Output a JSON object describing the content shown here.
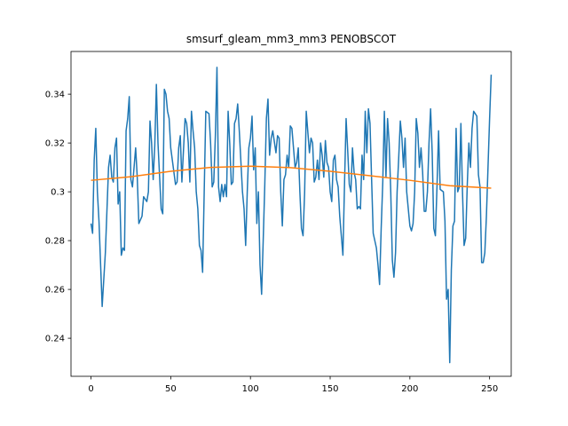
{
  "chart_data": {
    "type": "line",
    "title": "smsurf_gleam_mm3_mm3 PENOBSCOT",
    "xlim": [
      -12.55,
      263.55
    ],
    "ylim": [
      0.2244,
      0.3575
    ],
    "xticks": [
      0,
      50,
      100,
      150,
      200,
      250
    ],
    "yticks": [
      0.24,
      0.26,
      0.28,
      0.3,
      0.32,
      0.34
    ],
    "series": [
      {
        "color": "#1f77b4",
        "x": [
          0,
          1,
          2,
          3,
          4,
          5,
          7,
          9,
          11,
          12,
          13,
          14,
          15,
          16,
          17,
          18,
          19,
          20,
          21,
          22,
          23,
          24,
          25,
          26,
          28,
          29,
          30,
          32,
          33,
          35,
          36,
          37,
          38,
          39,
          40,
          41,
          42,
          44,
          45,
          46,
          47,
          48,
          49,
          50,
          53,
          54,
          55,
          56,
          57,
          59,
          60,
          61,
          62,
          63,
          64,
          65,
          66,
          67,
          68,
          69,
          70,
          71,
          72,
          74,
          75,
          76,
          77,
          78,
          79,
          80,
          81,
          82,
          83,
          84,
          85,
          86,
          87,
          88,
          89,
          90,
          91,
          92,
          93,
          95,
          96,
          97,
          98,
          99,
          100,
          101,
          102,
          103,
          104,
          105,
          106,
          107,
          108,
          109,
          110,
          111,
          112,
          113,
          114,
          116,
          117,
          118,
          119,
          120,
          121,
          122,
          123,
          124,
          125,
          126,
          127,
          128,
          129,
          130,
          131,
          132,
          133,
          134,
          135,
          137,
          138,
          139,
          140,
          141,
          142,
          143,
          144,
          145,
          146,
          147,
          148,
          149,
          150,
          151,
          152,
          153,
          154,
          155,
          156,
          158,
          159,
          160,
          161,
          162,
          163,
          164,
          165,
          166,
          167,
          168,
          169,
          170,
          171,
          172,
          173,
          174,
          175,
          176,
          177,
          179,
          180,
          181,
          182,
          183,
          184,
          185,
          186,
          187,
          188,
          189,
          190,
          191,
          192,
          193,
          194,
          195,
          196,
          197,
          198,
          200,
          201,
          202,
          203,
          204,
          205,
          206,
          207,
          208,
          209,
          210,
          211,
          212,
          213,
          214,
          215,
          216,
          217,
          218,
          219,
          221,
          222,
          223,
          224,
          225,
          226,
          227,
          228,
          229,
          230,
          231,
          232,
          233,
          234,
          235,
          236,
          237,
          238,
          239,
          240,
          242,
          243,
          244,
          245,
          246,
          247,
          248,
          249,
          250,
          251
        ],
        "values": [
          0.287,
          0.283,
          0.313,
          0.326,
          0.3,
          0.288,
          0.253,
          0.275,
          0.31,
          0.315,
          0.306,
          0.304,
          0.318,
          0.322,
          0.295,
          0.3,
          0.274,
          0.277,
          0.276,
          0.325,
          0.33,
          0.339,
          0.305,
          0.302,
          0.318,
          0.306,
          0.287,
          0.29,
          0.298,
          0.296,
          0.3,
          0.329,
          0.32,
          0.305,
          0.319,
          0.344,
          0.32,
          0.293,
          0.291,
          0.342,
          0.34,
          0.333,
          0.33,
          0.318,
          0.303,
          0.304,
          0.318,
          0.323,
          0.304,
          0.33,
          0.328,
          0.32,
          0.304,
          0.333,
          0.325,
          0.318,
          0.3,
          0.293,
          0.278,
          0.276,
          0.267,
          0.3,
          0.333,
          0.332,
          0.32,
          0.302,
          0.304,
          0.323,
          0.351,
          0.302,
          0.296,
          0.303,
          0.298,
          0.303,
          0.298,
          0.333,
          0.32,
          0.303,
          0.304,
          0.328,
          0.33,
          0.336,
          0.325,
          0.3,
          0.293,
          0.278,
          0.3,
          0.318,
          0.322,
          0.331,
          0.309,
          0.318,
          0.287,
          0.3,
          0.27,
          0.258,
          0.28,
          0.303,
          0.33,
          0.338,
          0.315,
          0.322,
          0.325,
          0.316,
          0.323,
          0.322,
          0.3,
          0.286,
          0.305,
          0.307,
          0.315,
          0.31,
          0.327,
          0.326,
          0.318,
          0.31,
          0.312,
          0.318,
          0.3,
          0.285,
          0.282,
          0.3,
          0.333,
          0.316,
          0.322,
          0.32,
          0.304,
          0.306,
          0.313,
          0.305,
          0.32,
          0.315,
          0.306,
          0.321,
          0.312,
          0.31,
          0.3,
          0.296,
          0.313,
          0.315,
          0.305,
          0.302,
          0.29,
          0.274,
          0.303,
          0.33,
          0.317,
          0.303,
          0.3,
          0.318,
          0.308,
          0.305,
          0.293,
          0.294,
          0.293,
          0.315,
          0.305,
          0.333,
          0.316,
          0.334,
          0.328,
          0.305,
          0.283,
          0.277,
          0.27,
          0.262,
          0.285,
          0.304,
          0.333,
          0.306,
          0.33,
          0.32,
          0.3,
          0.272,
          0.265,
          0.275,
          0.3,
          0.314,
          0.329,
          0.322,
          0.31,
          0.322,
          0.3,
          0.286,
          0.284,
          0.287,
          0.3,
          0.33,
          0.324,
          0.31,
          0.318,
          0.308,
          0.292,
          0.292,
          0.3,
          0.32,
          0.334,
          0.316,
          0.285,
          0.282,
          0.302,
          0.325,
          0.301,
          0.3,
          0.288,
          0.256,
          0.26,
          0.23,
          0.268,
          0.286,
          0.288,
          0.326,
          0.3,
          0.302,
          0.328,
          0.3,
          0.278,
          0.281,
          0.303,
          0.32,
          0.31,
          0.326,
          0.333,
          0.331,
          0.307,
          0.302,
          0.271,
          0.271,
          0.275,
          0.29,
          0.31,
          0.33,
          0.348
        ]
      },
      {
        "color": "#ff7f0e",
        "x": [
          0,
          25,
          50,
          75,
          100,
          125,
          150,
          175,
          200,
          225,
          251
        ],
        "values": [
          0.3047,
          0.3062,
          0.3084,
          0.31,
          0.3105,
          0.3099,
          0.3084,
          0.3066,
          0.3047,
          0.3025,
          0.3015
        ]
      }
    ]
  }
}
